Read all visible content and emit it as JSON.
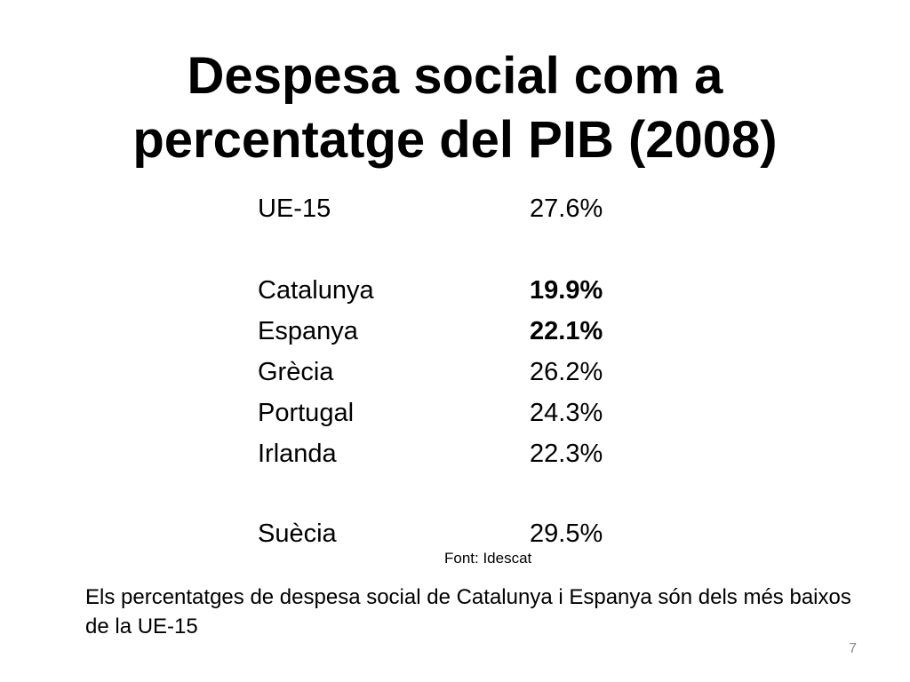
{
  "slide": {
    "title_lines": [
      "Despesa social com a",
      "percentatge del PIB (2008)"
    ],
    "rows": [
      {
        "label": "UE-15",
        "value": "27.6%"
      },
      {
        "label": "Catalunya",
        "value": "19.9%"
      },
      {
        "label": "Espanya",
        "value": "22.1%"
      },
      {
        "label": "Grècia",
        "value": "26.2%"
      },
      {
        "label": "Portugal",
        "value": "24.3%"
      },
      {
        "label": "Irlanda",
        "value": "22.3%"
      },
      {
        "label": "Suècia",
        "value": "29.5%"
      }
    ],
    "source": "Font: Idescat",
    "note": "Els percentatges de despesa social de Catalunya i Espanya són dels més baixos de la UE-15",
    "page_number": "7"
  }
}
